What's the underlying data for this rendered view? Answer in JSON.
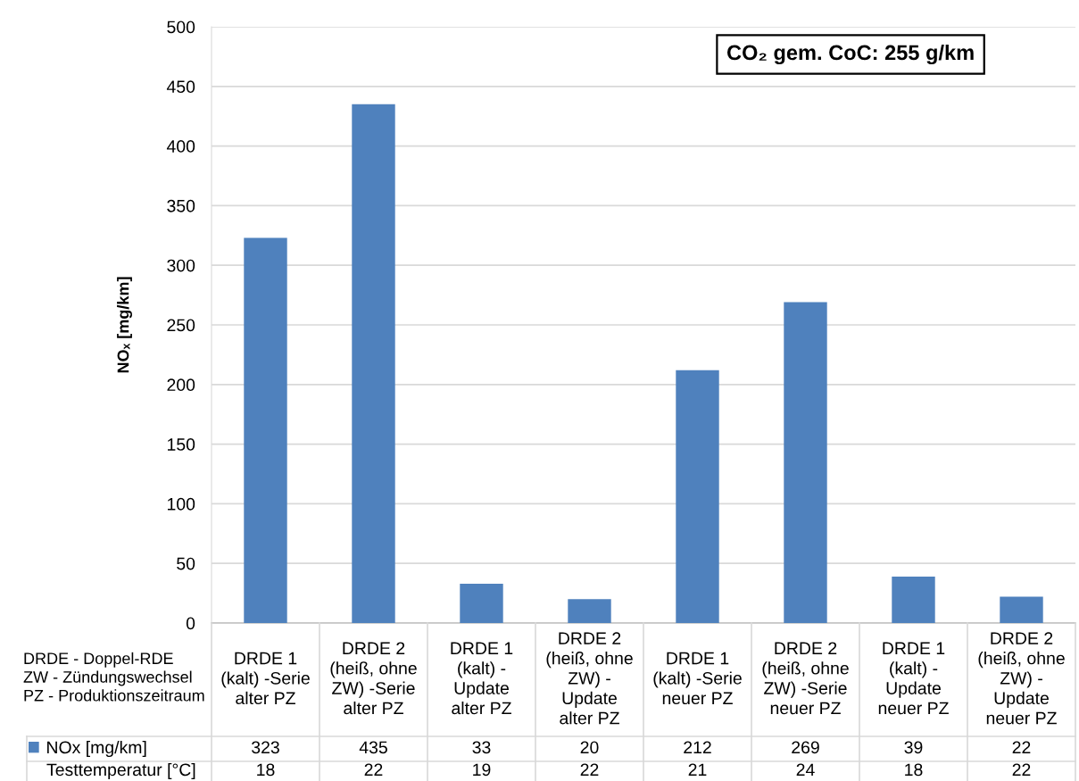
{
  "chart_data": {
    "type": "bar",
    "ylabel": "NOₓ [mg/km]",
    "categories": [
      "DRDE 1\n(kalt) -Serie\nalter PZ",
      "DRDE 2\n(heiß, ohne\nZW) -Serie\nalter PZ",
      "DRDE 1\n(kalt) -\nUpdate\nalter PZ",
      "DRDE 2\n(heiß, ohne\nZW) -\nUpdate\nalter PZ",
      "DRDE 1\n(kalt) -Serie\nneuer PZ",
      "DRDE 2\n(heiß, ohne\nZW) -Serie\nneuer PZ",
      "DRDE 1\n(kalt) -\nUpdate\nneuer PZ",
      "DRDE 2\n(heiß, ohne\nZW) -\nUpdate\nneuer PZ"
    ],
    "series": [
      {
        "name": "NOx [mg/km]",
        "color": "#4f81bd",
        "values": [
          323,
          435,
          33,
          20,
          212,
          269,
          39,
          22
        ]
      }
    ],
    "ylim": [
      0,
      500
    ],
    "yticks": [
      0,
      50,
      100,
      150,
      200,
      250,
      300,
      350,
      400,
      450,
      500
    ],
    "grid": "y",
    "legend": "bottom left",
    "data_labels": true,
    "annotations": [
      "CO₂ gem. CoC: 255 g/km",
      "DRDE - Doppel-RDE\nZW - Zündungswechsel\nPZ - Produktionszeitraum",
      "Testtemperatur [°C]",
      "18",
      "22",
      "19",
      "22",
      "21",
      "24",
      "18",
      "22"
    ]
  }
}
